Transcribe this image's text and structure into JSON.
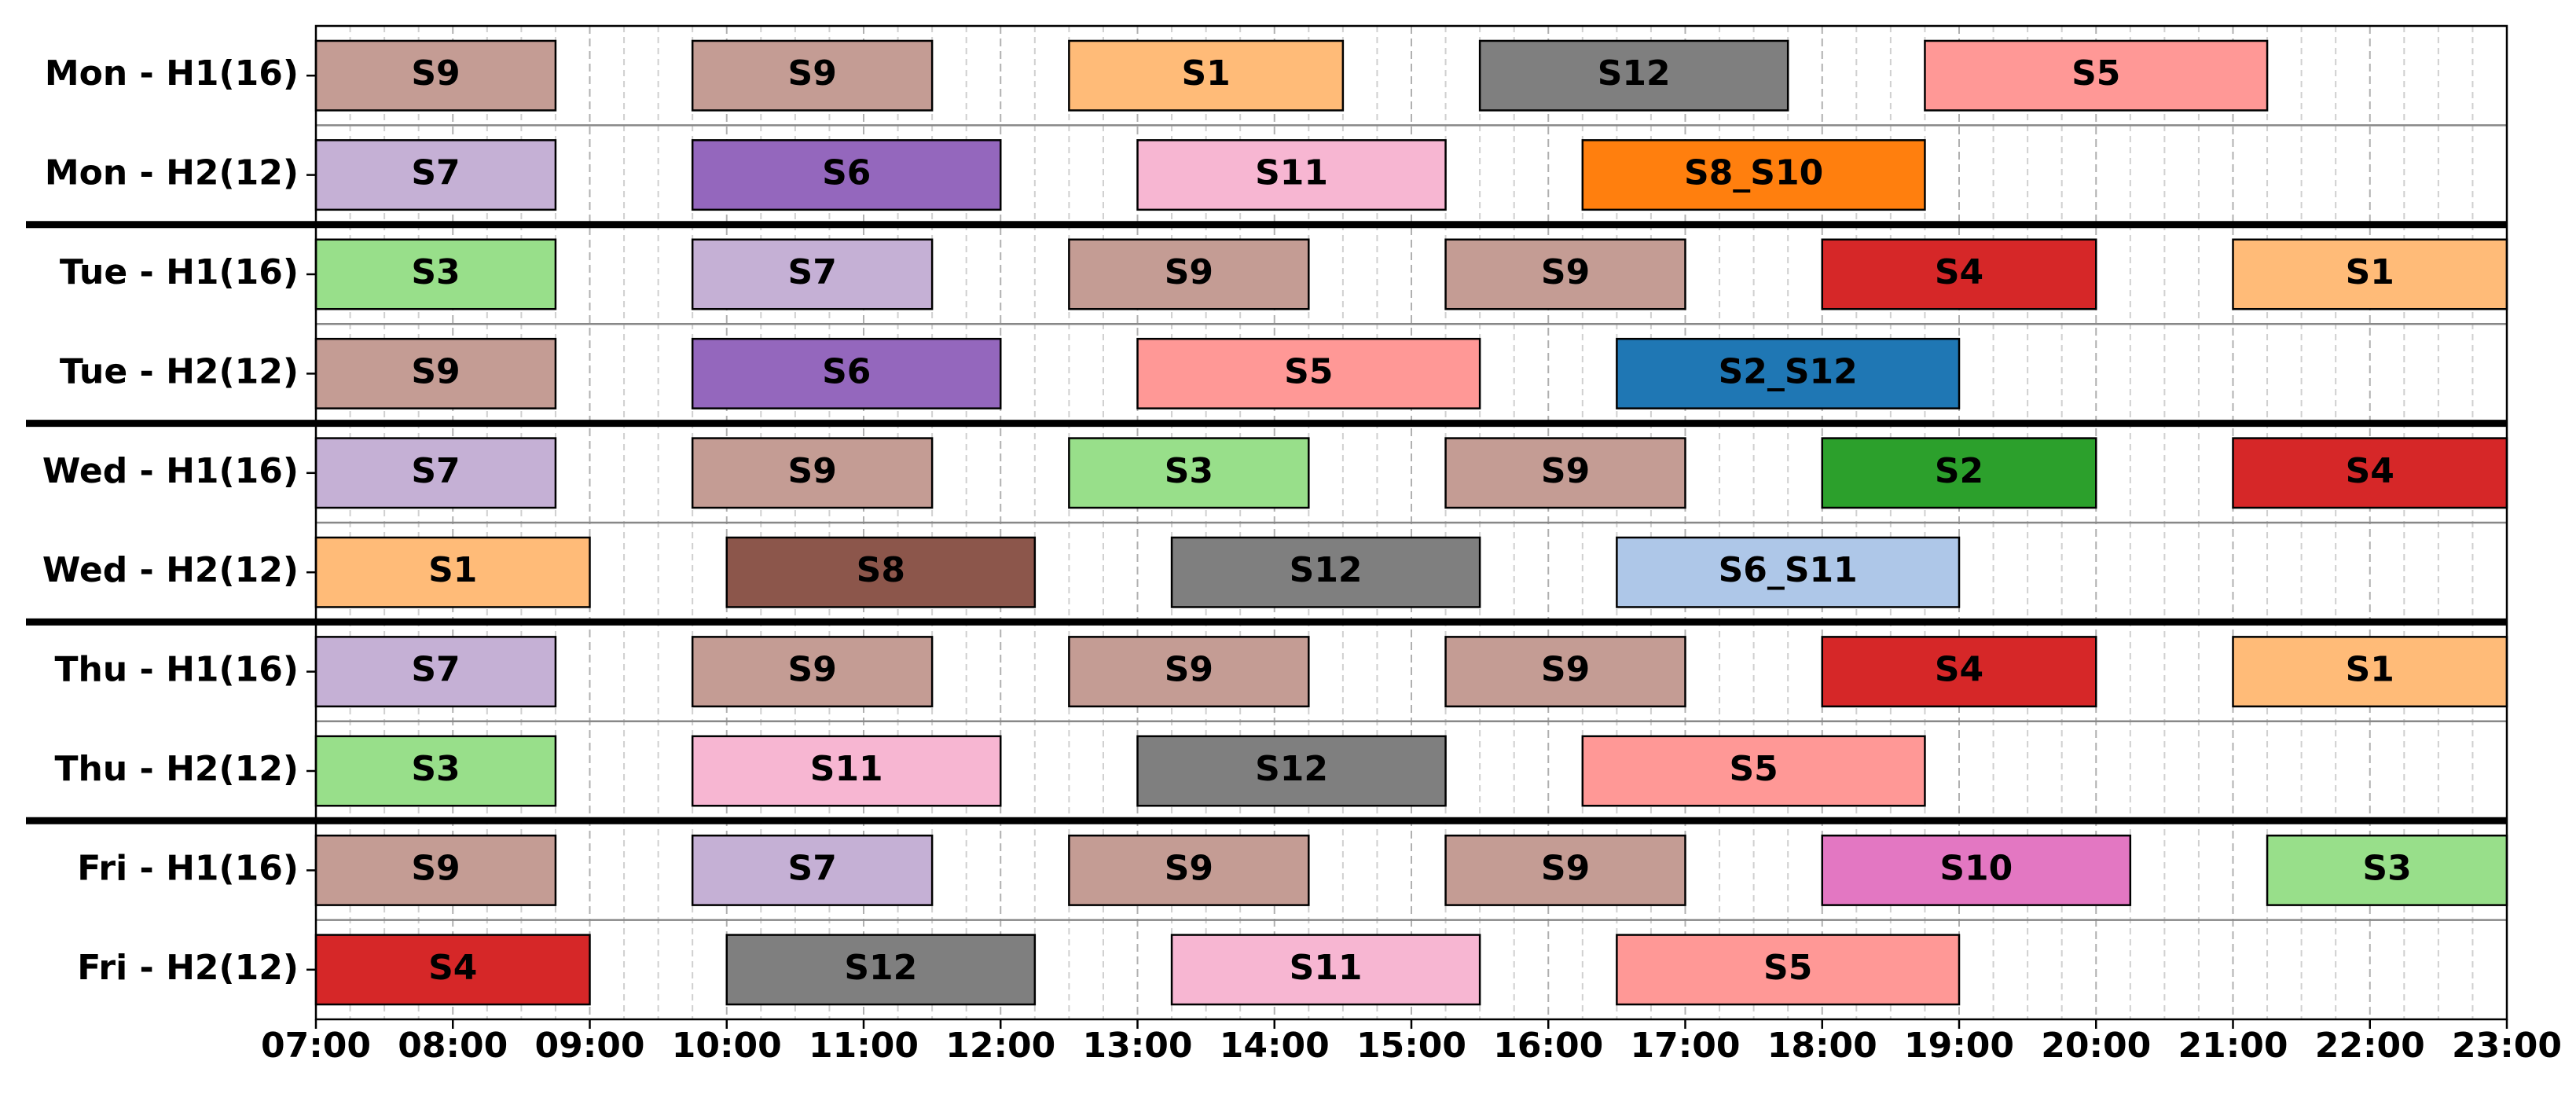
{
  "chart_data": {
    "type": "gantt",
    "xlim": [
      7,
      23
    ],
    "xticks": [
      {
        "value": 7,
        "label": "07:00"
      },
      {
        "value": 8,
        "label": "08:00"
      },
      {
        "value": 9,
        "label": "09:00"
      },
      {
        "value": 10,
        "label": "10:00"
      },
      {
        "value": 11,
        "label": "11:00"
      },
      {
        "value": 12,
        "label": "12:00"
      },
      {
        "value": 13,
        "label": "13:00"
      },
      {
        "value": 14,
        "label": "14:00"
      },
      {
        "value": 15,
        "label": "15:00"
      },
      {
        "value": 16,
        "label": "16:00"
      },
      {
        "value": 17,
        "label": "17:00"
      },
      {
        "value": 18,
        "label": "18:00"
      },
      {
        "value": 19,
        "label": "19:00"
      },
      {
        "value": 20,
        "label": "20:00"
      },
      {
        "value": 21,
        "label": "21:00"
      },
      {
        "value": 22,
        "label": "22:00"
      },
      {
        "value": 23,
        "label": "23:00"
      }
    ],
    "minor_xticks": [
      7.25,
      7.5,
      7.75,
      8.25,
      8.5,
      8.75,
      9.25,
      9.5,
      9.75,
      10.25,
      10.5,
      10.75,
      11.25,
      11.5,
      11.75,
      12.25,
      12.5,
      12.75,
      13.25,
      13.5,
      13.75,
      14.25,
      14.5,
      14.75,
      15.25,
      15.5,
      15.75,
      16.25,
      16.5,
      16.75,
      17.25,
      17.5,
      17.75,
      18.25,
      18.5,
      18.75,
      19.25,
      19.5,
      19.75,
      20.25,
      20.5,
      20.75,
      21.25,
      21.5,
      21.75,
      22.25,
      22.5,
      22.75
    ],
    "grid": true,
    "rows": [
      {
        "label": "Mon - H1(16)",
        "tasks": [
          {
            "label": "S9",
            "start": 7,
            "end": 8.75,
            "color": "#c49c94"
          },
          {
            "label": "S9",
            "start": 9.75,
            "end": 11.5,
            "color": "#c49c94"
          },
          {
            "label": "S1",
            "start": 12.5,
            "end": 14.5,
            "color": "#ffbb78"
          },
          {
            "label": "S12",
            "start": 15.5,
            "end": 17.75,
            "color": "#7f7f7f"
          },
          {
            "label": "S5",
            "start": 18.75,
            "end": 21.25,
            "color": "#ff9896"
          }
        ]
      },
      {
        "label": "Mon - H2(12)",
        "tasks": [
          {
            "label": "S7",
            "start": 7,
            "end": 8.75,
            "color": "#c5b0d5"
          },
          {
            "label": "S6",
            "start": 9.75,
            "end": 12,
            "color": "#9467bd"
          },
          {
            "label": "S11",
            "start": 13,
            "end": 15.25,
            "color": "#f7b6d2"
          },
          {
            "label": "S8_S10",
            "start": 16.25,
            "end": 18.75,
            "color": "#ff7f0e"
          }
        ]
      },
      {
        "label": "Tue - H1(16)",
        "tasks": [
          {
            "label": "S3",
            "start": 7,
            "end": 8.75,
            "color": "#98df8a"
          },
          {
            "label": "S7",
            "start": 9.75,
            "end": 11.5,
            "color": "#c5b0d5"
          },
          {
            "label": "S9",
            "start": 12.5,
            "end": 14.25,
            "color": "#c49c94"
          },
          {
            "label": "S9",
            "start": 15.25,
            "end": 17,
            "color": "#c49c94"
          },
          {
            "label": "S4",
            "start": 18,
            "end": 20,
            "color": "#d62728"
          },
          {
            "label": "S1",
            "start": 21,
            "end": 23,
            "color": "#ffbb78"
          }
        ]
      },
      {
        "label": "Tue - H2(12)",
        "tasks": [
          {
            "label": "S9",
            "start": 7,
            "end": 8.75,
            "color": "#c49c94"
          },
          {
            "label": "S6",
            "start": 9.75,
            "end": 12,
            "color": "#9467bd"
          },
          {
            "label": "S5",
            "start": 13,
            "end": 15.5,
            "color": "#ff9896"
          },
          {
            "label": "S2_S12",
            "start": 16.5,
            "end": 19,
            "color": "#1f77b4"
          }
        ]
      },
      {
        "label": "Wed - H1(16)",
        "tasks": [
          {
            "label": "S7",
            "start": 7,
            "end": 8.75,
            "color": "#c5b0d5"
          },
          {
            "label": "S9",
            "start": 9.75,
            "end": 11.5,
            "color": "#c49c94"
          },
          {
            "label": "S3",
            "start": 12.5,
            "end": 14.25,
            "color": "#98df8a"
          },
          {
            "label": "S9",
            "start": 15.25,
            "end": 17,
            "color": "#c49c94"
          },
          {
            "label": "S2",
            "start": 18,
            "end": 20,
            "color": "#2ca02c"
          },
          {
            "label": "S4",
            "start": 21,
            "end": 23,
            "color": "#d62728"
          }
        ]
      },
      {
        "label": "Wed - H2(12)",
        "tasks": [
          {
            "label": "S1",
            "start": 7,
            "end": 9,
            "color": "#ffbb78"
          },
          {
            "label": "S8",
            "start": 10,
            "end": 12.25,
            "color": "#8c564b"
          },
          {
            "label": "S12",
            "start": 13.25,
            "end": 15.5,
            "color": "#7f7f7f"
          },
          {
            "label": "S6_S11",
            "start": 16.5,
            "end": 19,
            "color": "#aec7e8"
          }
        ]
      },
      {
        "label": "Thu - H1(16)",
        "tasks": [
          {
            "label": "S7",
            "start": 7,
            "end": 8.75,
            "color": "#c5b0d5"
          },
          {
            "label": "S9",
            "start": 9.75,
            "end": 11.5,
            "color": "#c49c94"
          },
          {
            "label": "S9",
            "start": 12.5,
            "end": 14.25,
            "color": "#c49c94"
          },
          {
            "label": "S9",
            "start": 15.25,
            "end": 17,
            "color": "#c49c94"
          },
          {
            "label": "S4",
            "start": 18,
            "end": 20,
            "color": "#d62728"
          },
          {
            "label": "S1",
            "start": 21,
            "end": 23,
            "color": "#ffbb78"
          }
        ]
      },
      {
        "label": "Thu - H2(12)",
        "tasks": [
          {
            "label": "S3",
            "start": 7,
            "end": 8.75,
            "color": "#98df8a"
          },
          {
            "label": "S11",
            "start": 9.75,
            "end": 12,
            "color": "#f7b6d2"
          },
          {
            "label": "S12",
            "start": 13,
            "end": 15.25,
            "color": "#7f7f7f"
          },
          {
            "label": "S5",
            "start": 16.25,
            "end": 18.75,
            "color": "#ff9896"
          }
        ]
      },
      {
        "label": "Fri - H1(16)",
        "tasks": [
          {
            "label": "S9",
            "start": 7,
            "end": 8.75,
            "color": "#c49c94"
          },
          {
            "label": "S7",
            "start": 9.75,
            "end": 11.5,
            "color": "#c5b0d5"
          },
          {
            "label": "S9",
            "start": 12.5,
            "end": 14.25,
            "color": "#c49c94"
          },
          {
            "label": "S9",
            "start": 15.25,
            "end": 17,
            "color": "#c49c94"
          },
          {
            "label": "S10",
            "start": 18,
            "end": 20.25,
            "color": "#e377c2"
          },
          {
            "label": "S3",
            "start": 21.25,
            "end": 23,
            "color": "#98df8a"
          }
        ]
      },
      {
        "label": "Fri - H2(12)",
        "tasks": [
          {
            "label": "S4",
            "start": 7,
            "end": 9,
            "color": "#d62728"
          },
          {
            "label": "S12",
            "start": 10,
            "end": 12.25,
            "color": "#7f7f7f"
          },
          {
            "label": "S11",
            "start": 13.25,
            "end": 15.5,
            "color": "#f7b6d2"
          },
          {
            "label": "S5",
            "start": 16.5,
            "end": 19,
            "color": "#ff9896"
          }
        ]
      }
    ]
  }
}
